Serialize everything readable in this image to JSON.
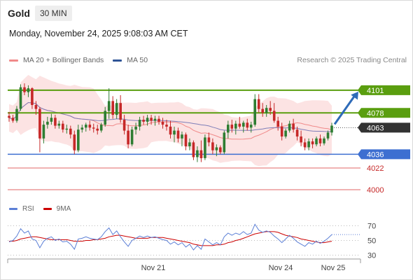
{
  "header": {
    "instrument": "Gold",
    "interval": "30 MIN",
    "datetime": "Monday, November 24, 2025 9:08:03 AM CET"
  },
  "legend": {
    "ma20_label": "MA 20 + Bollinger Bands",
    "ma50_label": "MA 50",
    "source": "Research © 2025 Trading Central",
    "rsi_label": "RSI",
    "rsi_ma_label": "9MA"
  },
  "colors": {
    "candle_up": "#2e7d32",
    "candle_down": "#c62828",
    "bollinger_fill": "#fbdada",
    "ma20": "#f08a8a",
    "ma50": "#7e7eb8",
    "resistance_line": "#5a9e0f",
    "pivot_line": "#3d6fd1",
    "support_line": "#e06666",
    "current_price_label": "#333333",
    "arrow": "#2e6bb8",
    "rsi": "#5b7fd6",
    "rsi_ma": "#cc0000"
  },
  "chart_data": [
    {
      "type": "candlestick",
      "title": "Gold",
      "interval": "30 MIN",
      "ylim": [
        3990,
        4118
      ],
      "x_ticks": [
        "Nov 21",
        "Nov 24",
        "Nov 25"
      ],
      "levels": [
        {
          "value": 4101,
          "label": "4101",
          "kind": "resistance"
        },
        {
          "value": 4078,
          "label": "4078",
          "kind": "resistance"
        },
        {
          "value": 4063,
          "label": "4063",
          "kind": "current"
        },
        {
          "value": 4036,
          "label": "4036",
          "kind": "pivot"
        },
        {
          "value": 4022,
          "label": "4022",
          "kind": "support"
        },
        {
          "value": 4000,
          "label": "4000",
          "kind": "support"
        }
      ],
      "target_arrow": {
        "from_value": 4065,
        "to_value": 4101
      },
      "candles_ohlc": [
        [
          4075,
          4079,
          4069,
          4073
        ],
        [
          4073,
          4076,
          4068,
          4070
        ],
        [
          4070,
          4085,
          4068,
          4082
        ],
        [
          4082,
          4107,
          4080,
          4104
        ],
        [
          4104,
          4108,
          4096,
          4099
        ],
        [
          4099,
          4106,
          4094,
          4103
        ],
        [
          4103,
          4104,
          4082,
          4086
        ],
        [
          4086,
          4090,
          4076,
          4082
        ],
        [
          4082,
          4084,
          4038,
          4052
        ],
        [
          4052,
          4070,
          4047,
          4066
        ],
        [
          4066,
          4074,
          4062,
          4069
        ],
        [
          4069,
          4077,
          4066,
          4073
        ],
        [
          4073,
          4076,
          4062,
          4065
        ],
        [
          4065,
          4070,
          4062,
          4067
        ],
        [
          4067,
          4070,
          4058,
          4061
        ],
        [
          4061,
          4066,
          4057,
          4062
        ],
        [
          4062,
          4065,
          4052,
          4056
        ],
        [
          4056,
          4060,
          4036,
          4040
        ],
        [
          4040,
          4066,
          4038,
          4061
        ],
        [
          4061,
          4066,
          4058,
          4063
        ],
        [
          4063,
          4068,
          4059,
          4066
        ],
        [
          4066,
          4070,
          4060,
          4063
        ],
        [
          4063,
          4067,
          4058,
          4062
        ],
        [
          4062,
          4066,
          4056,
          4060
        ],
        [
          4060,
          4068,
          4058,
          4066
        ],
        [
          4066,
          4084,
          4064,
          4080
        ],
        [
          4080,
          4103,
          4072,
          4090
        ],
        [
          4090,
          4095,
          4072,
          4076
        ],
        [
          4076,
          4092,
          4072,
          4088
        ],
        [
          4088,
          4096,
          4068,
          4071
        ],
        [
          4071,
          4076,
          4056,
          4060
        ],
        [
          4060,
          4066,
          4042,
          4046
        ],
        [
          4046,
          4064,
          4044,
          4061
        ],
        [
          4061,
          4068,
          4056,
          4064
        ],
        [
          4064,
          4074,
          4060,
          4071
        ],
        [
          4071,
          4075,
          4066,
          4069
        ],
        [
          4069,
          4076,
          4065,
          4073
        ],
        [
          4073,
          4076,
          4066,
          4070
        ],
        [
          4070,
          4075,
          4065,
          4072
        ],
        [
          4072,
          4075,
          4066,
          4069
        ],
        [
          4069,
          4073,
          4062,
          4066
        ],
        [
          4066,
          4071,
          4060,
          4064
        ],
        [
          4064,
          4070,
          4052,
          4056
        ],
        [
          4056,
          4064,
          4048,
          4060
        ],
        [
          4060,
          4063,
          4048,
          4052
        ],
        [
          4052,
          4059,
          4044,
          4056
        ],
        [
          4056,
          4058,
          4040,
          4044
        ],
        [
          4044,
          4052,
          4040,
          4048
        ],
        [
          4048,
          4050,
          4030,
          4033
        ],
        [
          4033,
          4044,
          4028,
          4040
        ],
        [
          4040,
          4050,
          4028,
          4032
        ],
        [
          4032,
          4056,
          4030,
          4053
        ],
        [
          4053,
          4058,
          4044,
          4048
        ],
        [
          4048,
          4052,
          4036,
          4040
        ],
        [
          4040,
          4046,
          4034,
          4043
        ],
        [
          4043,
          4045,
          4036,
          4038
        ],
        [
          4038,
          4060,
          4036,
          4058
        ],
        [
          4058,
          4070,
          4052,
          4066
        ],
        [
          4066,
          4071,
          4058,
          4062
        ],
        [
          4062,
          4070,
          4056,
          4067
        ],
        [
          4067,
          4074,
          4062,
          4064
        ],
        [
          4064,
          4070,
          4058,
          4068
        ],
        [
          4068,
          4072,
          4060,
          4063
        ],
        [
          4063,
          4069,
          4058,
          4066
        ],
        [
          4066,
          4097,
          4064,
          4092
        ],
        [
          4092,
          4097,
          4078,
          4082
        ],
        [
          4082,
          4088,
          4074,
          4078
        ],
        [
          4078,
          4086,
          4074,
          4083
        ],
        [
          4083,
          4090,
          4076,
          4080
        ],
        [
          4080,
          4088,
          4068,
          4070
        ],
        [
          4070,
          4074,
          4060,
          4064
        ],
        [
          4064,
          4068,
          4050,
          4054
        ],
        [
          4054,
          4062,
          4052,
          4060
        ],
        [
          4060,
          4070,
          4058,
          4067
        ],
        [
          4067,
          4072,
          4058,
          4061
        ],
        [
          4061,
          4064,
          4050,
          4054
        ],
        [
          4054,
          4060,
          4044,
          4048
        ],
        [
          4048,
          4052,
          4040,
          4043
        ],
        [
          4043,
          4052,
          4040,
          4049
        ],
        [
          4049,
          4052,
          4042,
          4046
        ],
        [
          4046,
          4054,
          4044,
          4052
        ],
        [
          4052,
          4056,
          4044,
          4047
        ],
        [
          4047,
          4054,
          4045,
          4052
        ],
        [
          4052,
          4060,
          4050,
          4058
        ],
        [
          4058,
          4068,
          4055,
          4065
        ]
      ]
    },
    {
      "type": "line",
      "title": "RSI",
      "ylim": [
        20,
        80
      ],
      "y_ticks": [
        70,
        50,
        30
      ],
      "series": [
        {
          "name": "RSI",
          "values": [
            48,
            50,
            56,
            66,
            60,
            63,
            52,
            50,
            40,
            49,
            53,
            55,
            50,
            52,
            48,
            49,
            45,
            38,
            52,
            53,
            55,
            53,
            52,
            51,
            55,
            62,
            67,
            58,
            63,
            55,
            48,
            42,
            50,
            53,
            56,
            54,
            56,
            54,
            55,
            53,
            51,
            50,
            45,
            48,
            44,
            47,
            41,
            45,
            37,
            43,
            38,
            52,
            48,
            44,
            47,
            44,
            55,
            60,
            57,
            60,
            58,
            62,
            58,
            60,
            72,
            64,
            61,
            63,
            61,
            56,
            52,
            47,
            52,
            57,
            53,
            48,
            45,
            42,
            47,
            45,
            49,
            46,
            49,
            53,
            58
          ]
        },
        {
          "name": "9MA",
          "values": [
            49,
            49,
            50,
            52,
            53,
            54,
            55,
            55,
            54,
            53,
            52,
            51,
            51,
            51,
            51,
            51,
            50,
            49,
            49,
            49,
            50,
            50,
            51,
            51,
            52,
            53,
            55,
            56,
            57,
            57,
            56,
            55,
            54,
            53,
            53,
            53,
            53,
            54,
            54,
            54,
            54,
            53,
            52,
            51,
            50,
            49,
            48,
            47,
            45,
            44,
            43,
            43,
            43,
            43,
            44,
            44,
            45,
            47,
            48,
            50,
            51,
            53,
            55,
            57,
            59,
            60,
            61,
            62,
            62,
            62,
            61,
            59,
            57,
            56,
            55,
            54,
            52,
            51,
            50,
            49,
            48,
            47,
            47,
            48,
            49
          ]
        }
      ]
    }
  ]
}
